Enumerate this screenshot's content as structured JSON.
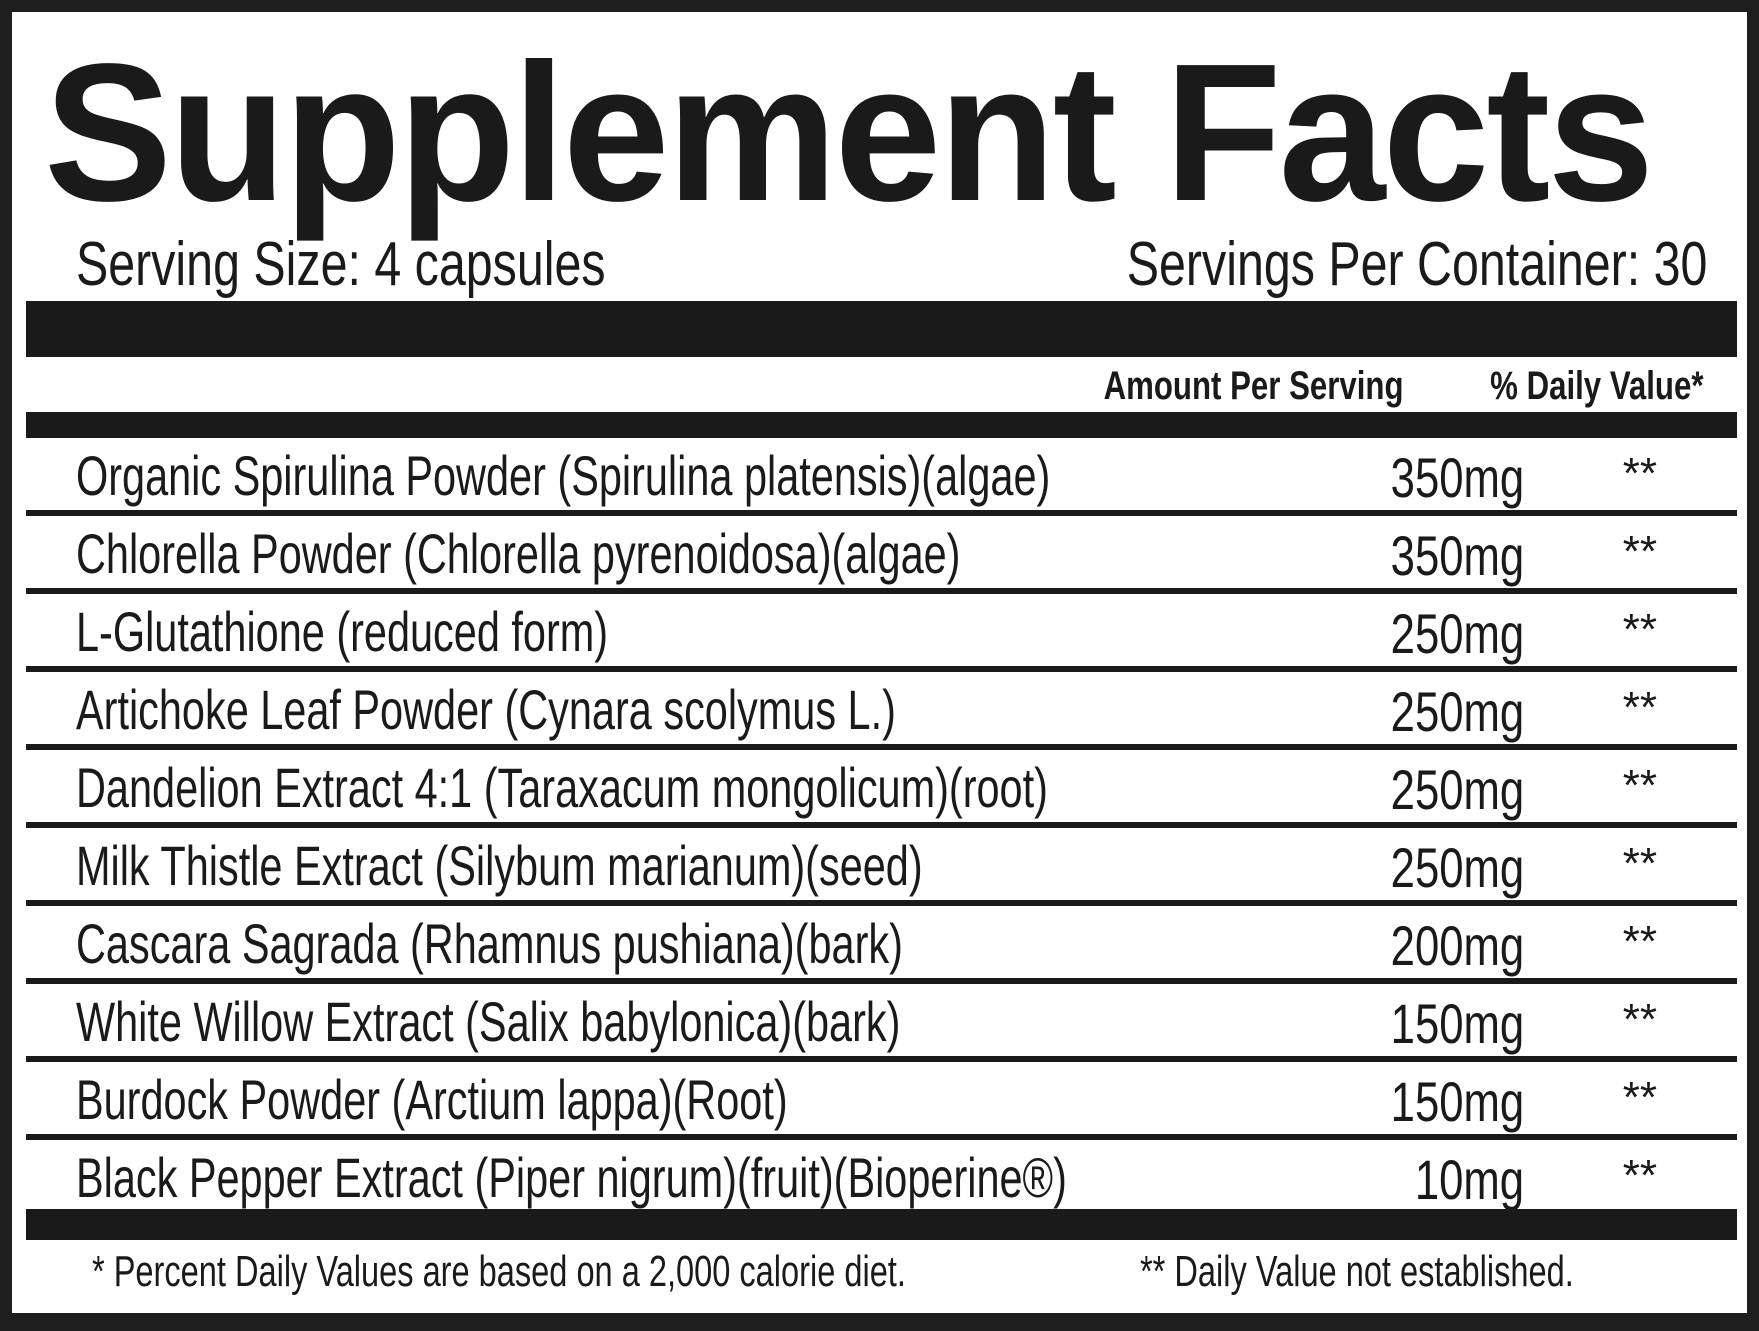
{
  "title": "Supplement Facts",
  "serving_size": "Serving Size: 4 capsules",
  "servings_per_container": "Servings Per Container: 30",
  "headers": {
    "amount": "Amount Per Serving",
    "daily_value": "% Daily Value*"
  },
  "ingredients": [
    {
      "name": "Organic Spirulina Powder (Spirulina platensis)(algae)",
      "amount": "350mg",
      "dv": "**"
    },
    {
      "name": "Chlorella Powder (Chlorella pyrenoidosa)(algae)",
      "amount": "350mg",
      "dv": "**"
    },
    {
      "name": "L-Glutathione (reduced form)",
      "amount": "250mg",
      "dv": "**"
    },
    {
      "name": "Artichoke Leaf Powder (Cynara scolymus L.)",
      "amount": "250mg",
      "dv": "**"
    },
    {
      "name": "Dandelion Extract 4:1 (Taraxacum mongolicum)(root)",
      "amount": "250mg",
      "dv": "**"
    },
    {
      "name": "Milk Thistle Extract (Silybum marianum)(seed)",
      "amount": "250mg",
      "dv": "**"
    },
    {
      "name": "Cascara Sagrada (Rhamnus pushiana)(bark)",
      "amount": "200mg",
      "dv": "**"
    },
    {
      "name": "White Willow Extract (Salix babylonica)(bark)",
      "amount": "150mg",
      "dv": "**"
    },
    {
      "name": "Burdock Powder (Arctium lappa)(Root)",
      "amount": "150mg",
      "dv": "**"
    },
    {
      "name": "Black Pepper Extract (Piper nigrum)(fruit)(Bioperine®)",
      "amount": "10mg",
      "dv": "**"
    }
  ],
  "footnotes": {
    "left": "* Percent Daily Values are based on a 2,000 calorie diet.",
    "right": "** Daily Value not established."
  }
}
